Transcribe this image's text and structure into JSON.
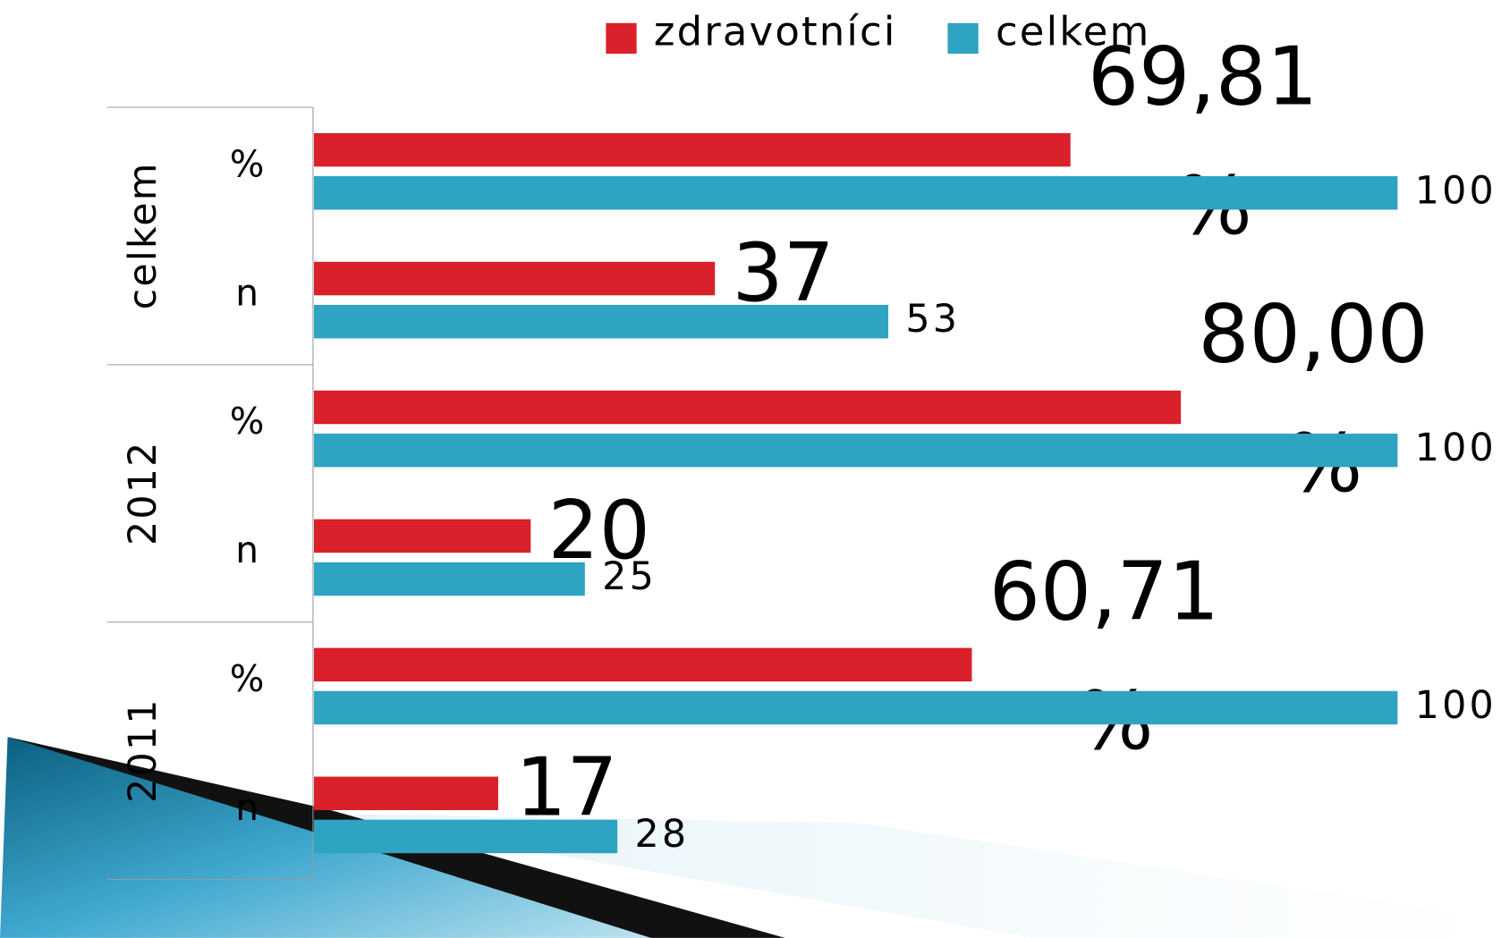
{
  "chart_data": {
    "type": "bar",
    "orientation": "horizontal",
    "groups": [
      "celkem",
      "2012",
      "2011"
    ],
    "categories": [
      "%",
      "n",
      "%",
      "n",
      "%",
      "n"
    ],
    "series": [
      {
        "name": "zdravotníci",
        "color": "#d9202b",
        "values": [
          69.81,
          37,
          80,
          20,
          60.71,
          17
        ],
        "value_labels": [
          "69,81 %",
          "37",
          "80,00 %",
          "20",
          "60,71 %",
          "17"
        ]
      },
      {
        "name": "celkem",
        "color": "#2ea3c2",
        "values": [
          100,
          53,
          100,
          25,
          100,
          28
        ]
      }
    ],
    "xlim": [
      0,
      100
    ]
  }
}
